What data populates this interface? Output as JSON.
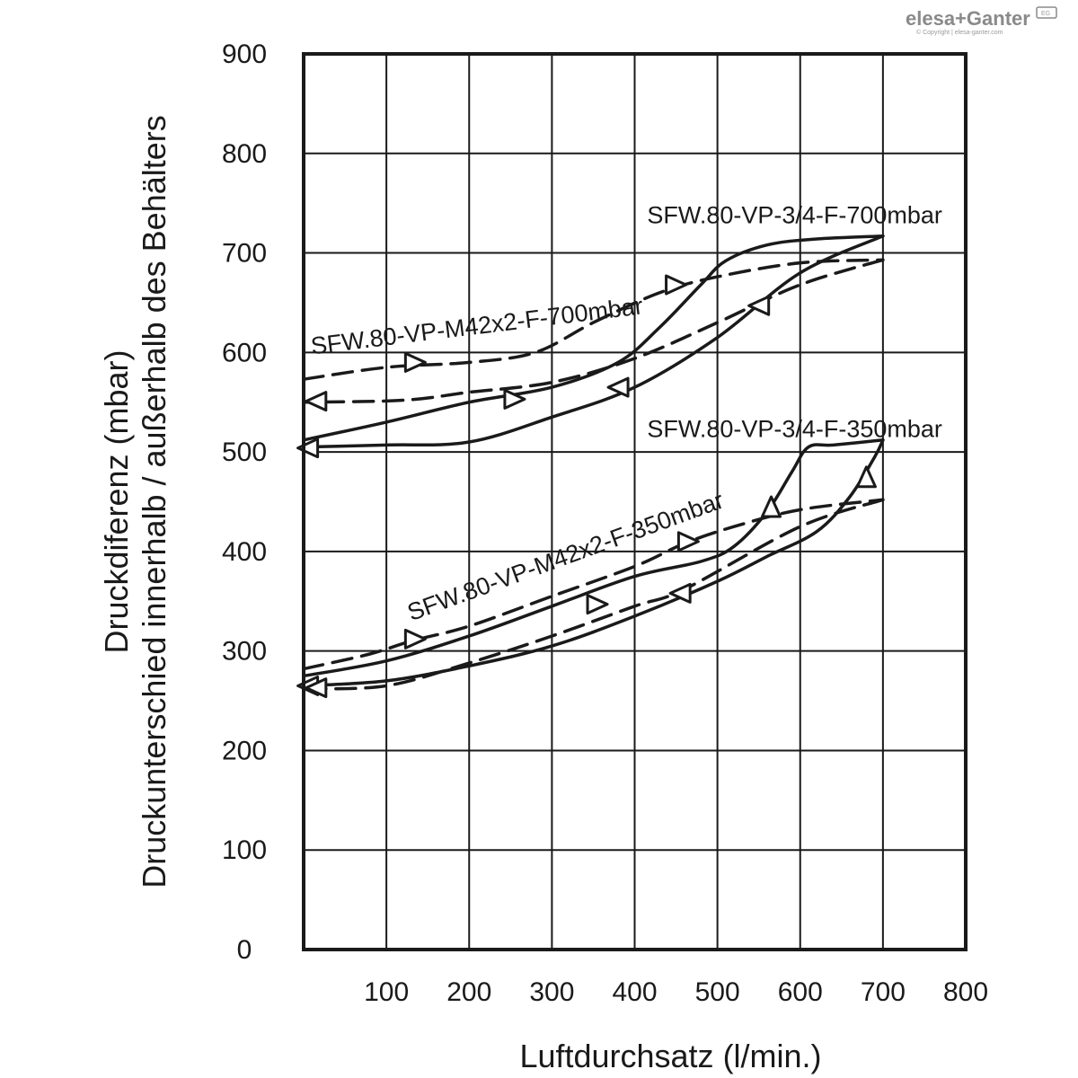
{
  "chart_data": {
    "type": "line",
    "title": "",
    "xlabel": "Luftdurchsatz (l/min.)",
    "ylabel": [
      "Druckdiferenz (mbar)",
      "Druckunterschied innerhalb / außerhalb des Behälters"
    ],
    "xlim": [
      0,
      800
    ],
    "ylim": [
      0,
      900
    ],
    "x_ticks": [
      "100",
      "200",
      "300",
      "400",
      "500",
      "600",
      "700",
      "800"
    ],
    "y_ticks": [
      "0",
      "100",
      "200",
      "300",
      "400",
      "500",
      "600",
      "700",
      "800",
      "900"
    ],
    "grid": true,
    "series": [
      {
        "name": "SFW.80-VP-3/4-F-700mbar",
        "style": "solid",
        "loading": [
          [
            0,
            512
          ],
          [
            100,
            530
          ],
          [
            200,
            550
          ],
          [
            300,
            565
          ],
          [
            380,
            590
          ],
          [
            430,
            625
          ],
          [
            480,
            668
          ],
          [
            510,
            692
          ],
          [
            560,
            708
          ],
          [
            620,
            714
          ],
          [
            700,
            717
          ]
        ],
        "unloading": [
          [
            700,
            717
          ],
          [
            600,
            680
          ],
          [
            500,
            615
          ],
          [
            400,
            565
          ],
          [
            300,
            535
          ],
          [
            200,
            510
          ],
          [
            100,
            507
          ],
          [
            0,
            505
          ]
        ],
        "arrows": [
          [
            255,
            553,
            "right"
          ],
          [
            380,
            565,
            "left"
          ],
          [
            5,
            504,
            "left"
          ]
        ]
      },
      {
        "name": "SFW.80-VP-M42x2-F-700mbar",
        "style": "dashed",
        "loading": [
          [
            0,
            573
          ],
          [
            100,
            585
          ],
          [
            200,
            590
          ],
          [
            280,
            600
          ],
          [
            350,
            630
          ],
          [
            430,
            660
          ],
          [
            500,
            676
          ],
          [
            600,
            690
          ],
          [
            700,
            693
          ]
        ],
        "unloading": [
          [
            700,
            693
          ],
          [
            600,
            668
          ],
          [
            500,
            630
          ],
          [
            400,
            594
          ],
          [
            300,
            570
          ],
          [
            200,
            560
          ],
          [
            120,
            552
          ],
          [
            0,
            550
          ]
        ],
        "arrows": [
          [
            135,
            590,
            "right"
          ],
          [
            450,
            668,
            "right"
          ],
          [
            550,
            647,
            "left"
          ],
          [
            15,
            551,
            "left"
          ]
        ]
      },
      {
        "name": "SFW.80-VP-3/4-F-350mbar",
        "style": "solid",
        "loading": [
          [
            0,
            275
          ],
          [
            100,
            290
          ],
          [
            200,
            315
          ],
          [
            300,
            345
          ],
          [
            400,
            375
          ],
          [
            480,
            390
          ],
          [
            520,
            405
          ],
          [
            560,
            440
          ],
          [
            590,
            480
          ],
          [
            610,
            505
          ],
          [
            640,
            507
          ],
          [
            700,
            512
          ]
        ],
        "unloading": [
          [
            700,
            512
          ],
          [
            690,
            495
          ],
          [
            660,
            455
          ],
          [
            620,
            420
          ],
          [
            560,
            395
          ],
          [
            500,
            370
          ],
          [
            400,
            335
          ],
          [
            300,
            305
          ],
          [
            200,
            285
          ],
          [
            100,
            270
          ],
          [
            0,
            265
          ]
        ],
        "arrows": [
          [
            565,
            445,
            "up"
          ],
          [
            680,
            475,
            "up"
          ],
          [
            5,
            265,
            "left"
          ]
        ]
      },
      {
        "name": "SFW.80-VP-M42x2-F-350mbar",
        "style": "dashed",
        "loading": [
          [
            0,
            282
          ],
          [
            80,
            297
          ],
          [
            130,
            310
          ],
          [
            200,
            325
          ],
          [
            300,
            355
          ],
          [
            400,
            385
          ],
          [
            460,
            408
          ],
          [
            520,
            425
          ],
          [
            600,
            442
          ],
          [
            700,
            452
          ]
        ],
        "unloading": [
          [
            700,
            452
          ],
          [
            600,
            425
          ],
          [
            460,
            362
          ],
          [
            400,
            345
          ],
          [
            300,
            315
          ],
          [
            200,
            288
          ],
          [
            100,
            265
          ],
          [
            0,
            262
          ]
        ],
        "arrows": [
          [
            135,
            312,
            "right"
          ],
          [
            355,
            347,
            "right"
          ],
          [
            465,
            410,
            "right"
          ],
          [
            455,
            358,
            "left"
          ],
          [
            15,
            263,
            "left"
          ]
        ]
      }
    ],
    "annotations": [
      {
        "text": "SFW.80-VP-3/4-F-700mbar",
        "x": 415,
        "y": 730,
        "angle": 0
      },
      {
        "text": "SFW.80-VP-M42x2-F-700mbar",
        "x": 10,
        "y": 598,
        "angle": -7
      },
      {
        "text": "SFW.80-VP-3/4-F-350mbar",
        "x": 415,
        "y": 515,
        "angle": 0
      },
      {
        "text": "SFW.80-VP-M42x2-F-350mbar",
        "x": 130,
        "y": 330,
        "angle": -20
      }
    ]
  },
  "logo": {
    "text": "elesa+Ganter",
    "badge": "EG",
    "copyright": "© Copyright | elesa-ganter.com"
  }
}
